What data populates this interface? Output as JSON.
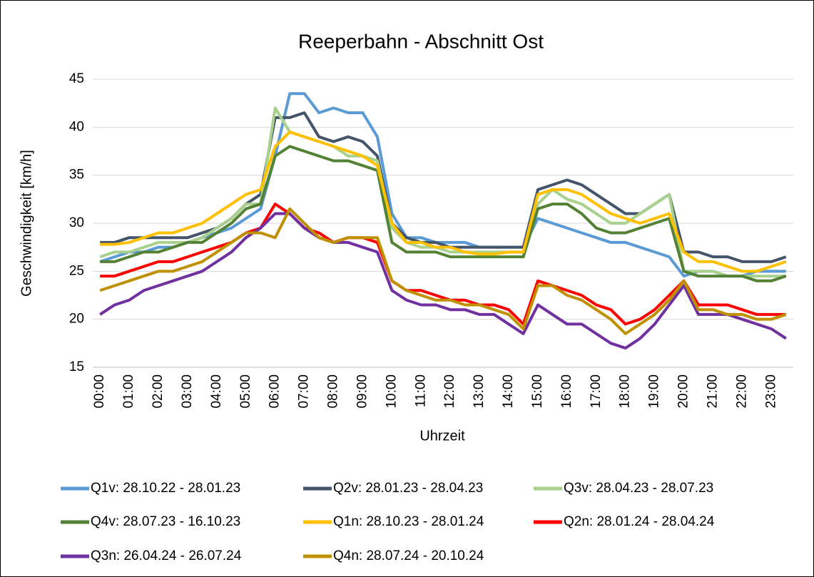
{
  "chart_data": {
    "type": "line",
    "title": "Reeperbahn - Abschnitt Ost",
    "x_label": "Uhrzeit",
    "y_label": "Geschwindigkeit [km/h]",
    "categories": [
      "00:00",
      null,
      "01:00",
      null,
      "02:00",
      null,
      "03:00",
      null,
      "04:00",
      null,
      "05:00",
      null,
      "06:00",
      null,
      "07:00",
      null,
      "08:00",
      null,
      "09:00",
      null,
      "10:00",
      null,
      "11:00",
      null,
      "12:00",
      null,
      "13:00",
      null,
      "14:00",
      null,
      "15:00",
      null,
      "16:00",
      null,
      "17:00",
      null,
      "18:00",
      null,
      "19:00",
      null,
      "20:00",
      null,
      "21:00",
      null,
      "22:00",
      null,
      "23:00",
      null
    ],
    "ylim": [
      15,
      45
    ],
    "yticks": [
      15,
      20,
      25,
      30,
      35,
      40,
      45
    ],
    "grid": true,
    "legend": "bottom",
    "series": [
      {
        "name": "Q1v: 28.10.22 - 28.01.23",
        "color": "#5b9bd5",
        "values": [
          26,
          26.5,
          27,
          27,
          27.5,
          27.5,
          28,
          28.5,
          29,
          29.5,
          30.5,
          31.5,
          37,
          43.5,
          43.5,
          41.5,
          42,
          41.5,
          41.5,
          39,
          31,
          28.5,
          28.5,
          28,
          28,
          28,
          27.5,
          27.5,
          27.5,
          27.5,
          30.5,
          30,
          29.5,
          29,
          28.5,
          28,
          28,
          27.5,
          27,
          26.5,
          24.5,
          25,
          25,
          24.5,
          24.5,
          25,
          25,
          25
        ]
      },
      {
        "name": "Q2v: 28.01.23 - 28.04.23",
        "color": "#44546a",
        "values": [
          28,
          28,
          28.5,
          28.5,
          28.5,
          28.5,
          28.5,
          29,
          29.5,
          30.5,
          32,
          33,
          41,
          41,
          41.5,
          39,
          38.5,
          39,
          38.5,
          37,
          30,
          28.5,
          28,
          28,
          27.5,
          27.5,
          27.5,
          27.5,
          27.5,
          27.5,
          33.5,
          34,
          34.5,
          34,
          33,
          32,
          31,
          31,
          32,
          33,
          27,
          27,
          26.5,
          26.5,
          26,
          26,
          26,
          26.5
        ]
      },
      {
        "name": "Q3v: 28.04.23 - 28.07.23",
        "color": "#a9d18e",
        "values": [
          26.5,
          27,
          27,
          27.5,
          28,
          28,
          28,
          28.5,
          29.5,
          30.5,
          32,
          32,
          42,
          39.5,
          39,
          38.5,
          38,
          37,
          37,
          36.5,
          29.5,
          28,
          27.5,
          27.5,
          27,
          27,
          27,
          27,
          27,
          27,
          32,
          33.5,
          32.5,
          32,
          31,
          30,
          30,
          31,
          32,
          33,
          25,
          25,
          25,
          24.5,
          24.5,
          24.5,
          24.5,
          24.5
        ]
      },
      {
        "name": "Q4v: 28.07.23 - 16.10.23",
        "color": "#548235",
        "values": [
          26,
          26,
          26.5,
          27,
          27,
          27.5,
          28,
          28,
          29,
          30,
          31.5,
          32,
          37,
          38,
          37.5,
          37,
          36.5,
          36.5,
          36,
          35.5,
          28,
          27,
          27,
          27,
          26.5,
          26.5,
          26.5,
          26.5,
          26.5,
          26.5,
          31.5,
          32,
          32,
          31,
          29.5,
          29,
          29,
          29.5,
          30,
          30.5,
          25,
          24.5,
          24.5,
          24.5,
          24.5,
          24,
          24,
          24.5
        ]
      },
      {
        "name": "Q1n: 28.10.23 - 28.01.24",
        "color": "#ffc000",
        "values": [
          27.8,
          27.8,
          28,
          28.5,
          29,
          29,
          29.5,
          30,
          31,
          32,
          33,
          33.5,
          38,
          39.5,
          39,
          38.5,
          38,
          37.5,
          37,
          36,
          30,
          28,
          28,
          27.5,
          27.5,
          27,
          26.8,
          26.8,
          27,
          27,
          33,
          33.5,
          33.5,
          33,
          32,
          31,
          30.5,
          30,
          30.5,
          31,
          27,
          26,
          26,
          25.5,
          25,
          25,
          25.5,
          26
        ]
      },
      {
        "name": "Q2n: 28.01.24 - 28.04.24",
        "color": "#ff0000",
        "values": [
          24.5,
          24.5,
          25,
          25.5,
          26,
          26,
          26.5,
          27,
          27.5,
          28,
          29,
          29.5,
          32,
          31,
          29.5,
          29,
          28,
          28.5,
          28.5,
          28,
          24,
          23,
          23,
          22.5,
          22,
          22,
          21.5,
          21.5,
          21,
          19.5,
          24,
          23.5,
          23,
          22.5,
          21.5,
          21,
          19.5,
          20,
          21,
          22.5,
          24,
          21.5,
          21.5,
          21.5,
          21,
          20.5,
          20.5,
          20.5
        ]
      },
      {
        "name": "Q3n: 26.04.24 - 26.07.24",
        "color": "#7030a0",
        "values": [
          20.5,
          21.5,
          22,
          23,
          23.5,
          24,
          24.5,
          25,
          26,
          27,
          28.5,
          29.5,
          31,
          31,
          29.5,
          28.5,
          28,
          28,
          27.5,
          27,
          23,
          22,
          21.5,
          21.5,
          21,
          21,
          20.5,
          20.5,
          19.5,
          18.5,
          21.5,
          20.5,
          19.5,
          19.5,
          18.5,
          17.5,
          17,
          18,
          19.5,
          21.5,
          23.5,
          20.5,
          20.5,
          20.5,
          20,
          19.5,
          19,
          18
        ]
      },
      {
        "name": "Q4n: 28.07.24 - 20.10.24",
        "color": "#bf9000",
        "values": [
          23,
          23.5,
          24,
          24.5,
          25,
          25,
          25.5,
          26,
          27,
          28,
          29,
          29,
          28.5,
          31.5,
          30,
          28.5,
          28,
          28.5,
          28.5,
          28.5,
          24,
          23,
          22.5,
          22,
          22,
          21.5,
          21.5,
          21,
          20.5,
          19,
          23.5,
          23.5,
          22.5,
          22,
          21,
          20,
          18.5,
          19.5,
          20.5,
          22,
          24,
          21,
          21,
          20.5,
          20.5,
          20,
          20,
          20.5
        ]
      }
    ]
  }
}
